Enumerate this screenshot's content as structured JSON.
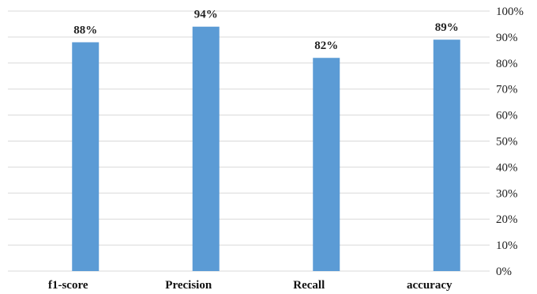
{
  "chart_data": {
    "type": "bar",
    "categories": [
      "f1-score",
      "Precision",
      "Recall",
      "accuracy"
    ],
    "values": [
      88,
      94,
      82,
      89
    ],
    "data_labels": [
      "88%",
      "94%",
      "82%",
      "89%"
    ],
    "title": "",
    "xlabel": "",
    "ylabel": "",
    "ylim": [
      0,
      100
    ],
    "y_ticks": [
      0,
      10,
      20,
      30,
      40,
      50,
      60,
      70,
      80,
      90,
      100
    ],
    "y_tick_labels": [
      "0%",
      "10%",
      "20%",
      "30%",
      "40%",
      "50%",
      "60%",
      "70%",
      "80%",
      "90%",
      "100%"
    ],
    "y_axis_side": "right",
    "grid": true,
    "legend": "none",
    "bar_color": "#5b9bd5"
  }
}
